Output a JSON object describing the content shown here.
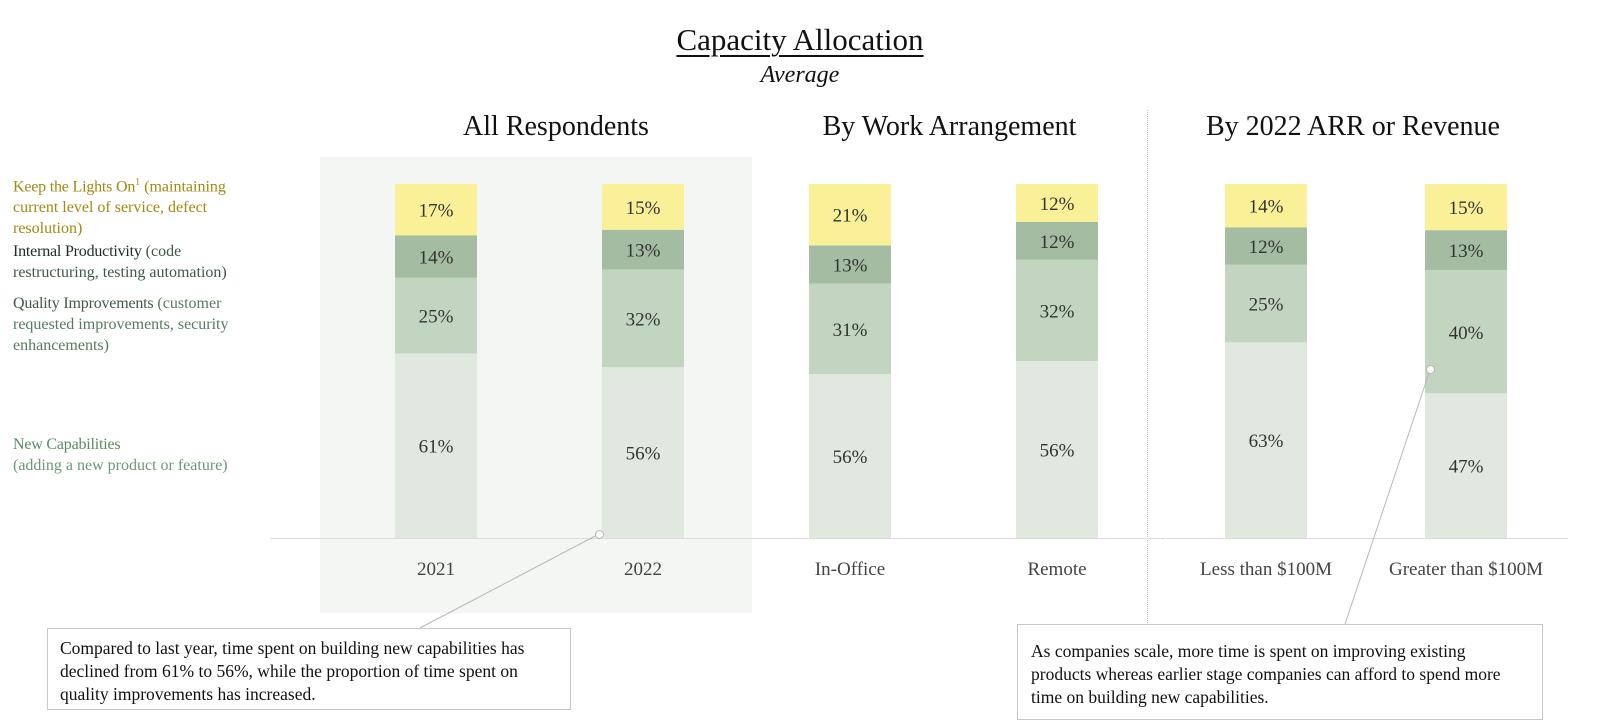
{
  "header": {
    "title": "Capacity Allocation",
    "subtitle": "Average"
  },
  "groups": [
    {
      "title": "All Respondents"
    },
    {
      "title": "By Work Arrangement"
    },
    {
      "title": "By 2022 ARR or Revenue"
    }
  ],
  "legend": [
    {
      "name": "Keep the Lights On",
      "sup": "1",
      "desc": " (maintaining current level of service, defect resolution)",
      "color": "#a08a12"
    },
    {
      "name": "Internal Productivity",
      "sup": "",
      "desc": " (code restructuring, testing automation)",
      "color": "#3f5a46"
    },
    {
      "name": "Quality Improvements",
      "sup": "",
      "desc": " (customer requested improvements, security enhancements)",
      "color": "#587a5e"
    },
    {
      "name": "New Capabilities",
      "sup": "",
      "desc": "(adding a new product or feature)",
      "color": "#6e9873"
    }
  ],
  "callouts": {
    "left": "Compared to last year, time spent on building new capabilities has declined from 61% to 56%, while the proportion of time spent on quality improvements has increased.",
    "right": "As companies scale, more time is spent on improving existing products whereas earlier stage companies can afford to spend more time on building new capabilities."
  },
  "chart_data": {
    "type": "bar",
    "stacked": true,
    "categories": [
      "2021",
      "2022",
      "In-Office",
      "Remote",
      "Less than $100M",
      "Greater than $100M"
    ],
    "series": [
      {
        "name": "New Capabilities",
        "values": [
          61,
          56,
          56,
          56,
          63,
          47
        ],
        "color": "#e1e8e0"
      },
      {
        "name": "Quality Improvements",
        "values": [
          25,
          32,
          31,
          32,
          25,
          40
        ],
        "color": "#c2d5c0"
      },
      {
        "name": "Internal Productivity",
        "values": [
          14,
          13,
          13,
          12,
          12,
          13
        ],
        "color": "#a3bca2"
      },
      {
        "name": "Keep the Lights On",
        "values": [
          17,
          15,
          21,
          12,
          14,
          15
        ],
        "color": "#faf097"
      }
    ],
    "labels": [
      [
        "61%",
        "56%",
        "56%",
        "56%",
        "63%",
        "47%"
      ],
      [
        "25%",
        "32%",
        "31%",
        "32%",
        "25%",
        "40%"
      ],
      [
        "14%",
        "13%",
        "13%",
        "12%",
        "12%",
        "13%"
      ],
      [
        "17%",
        "15%",
        "21%",
        "12%",
        "14%",
        "15%"
      ]
    ],
    "grid": false
  }
}
